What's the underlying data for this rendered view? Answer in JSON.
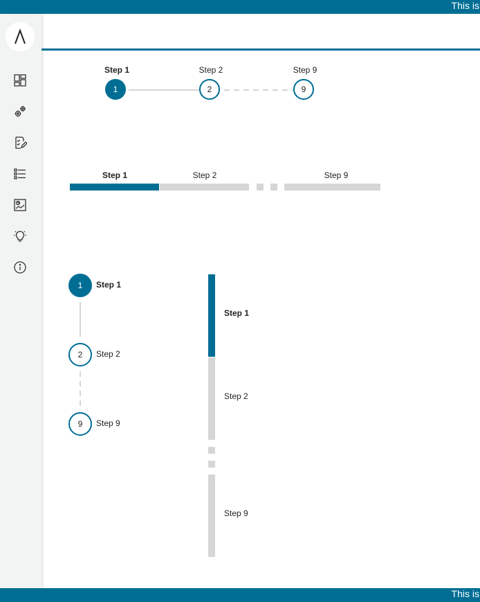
{
  "banner": {
    "text": "This is"
  },
  "sidebar": {
    "logo_icon": "logo-caret-icon",
    "items": [
      {
        "name": "dashboard-icon"
      },
      {
        "name": "gears-icon"
      },
      {
        "name": "checklist-edit-icon"
      },
      {
        "name": "list-icon"
      },
      {
        "name": "report-icon"
      },
      {
        "name": "lightbulb-icon"
      },
      {
        "name": "info-icon"
      }
    ]
  },
  "colors": {
    "accent": "#006e94",
    "inactive": "#d6d6d6",
    "sidebar_bg": "#f2f4f3"
  },
  "horizontal_stepper": {
    "steps": [
      {
        "label": "Step 1",
        "number": "1",
        "state": "active"
      },
      {
        "label": "Step 2",
        "number": "2",
        "state": "inactive"
      },
      {
        "label": "Step 9",
        "number": "9",
        "state": "inactive"
      }
    ]
  },
  "horizontal_bar_stepper": {
    "steps": [
      {
        "label": "Step 1",
        "state": "active"
      },
      {
        "label": "Step 2",
        "state": "inactive"
      },
      {
        "label": "Step 9",
        "state": "inactive"
      }
    ]
  },
  "vertical_stepper": {
    "steps": [
      {
        "label": "Step 1",
        "number": "1",
        "state": "active"
      },
      {
        "label": "Step 2",
        "number": "2",
        "state": "inactive"
      },
      {
        "label": "Step 9",
        "number": "9",
        "state": "inactive"
      }
    ]
  },
  "vertical_bar_stepper": {
    "steps": [
      {
        "label": "Step 1",
        "state": "active"
      },
      {
        "label": "Step 2",
        "state": "inactive"
      },
      {
        "label": "Step 9",
        "state": "inactive"
      }
    ]
  }
}
